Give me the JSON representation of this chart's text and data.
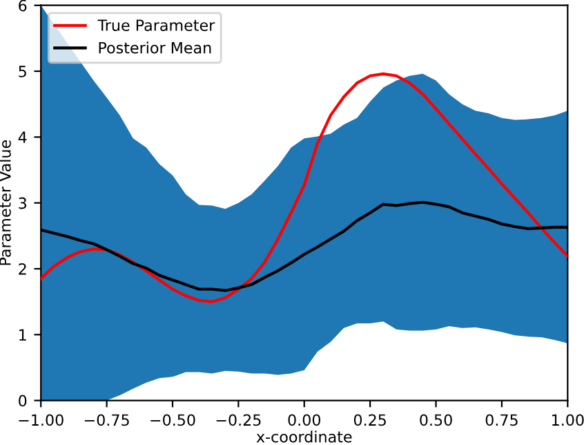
{
  "chart_data": {
    "type": "line",
    "xlabel": "x-coordinate",
    "ylabel": "Parameter Value",
    "x": [
      -1.0,
      -0.95,
      -0.9,
      -0.85,
      -0.8,
      -0.75,
      -0.7,
      -0.65,
      -0.6,
      -0.55,
      -0.5,
      -0.45,
      -0.4,
      -0.35,
      -0.3,
      -0.25,
      -0.2,
      -0.15,
      -0.1,
      -0.05,
      0.0,
      0.05,
      0.1,
      0.15,
      0.2,
      0.25,
      0.3,
      0.35,
      0.4,
      0.45,
      0.5,
      0.55,
      0.6,
      0.65,
      0.7,
      0.75,
      0.8,
      0.85,
      0.9,
      0.95,
      1.0
    ],
    "series": [
      {
        "name": "True Parameter",
        "color": "#ff0000",
        "values": [
          1.85,
          2.04,
          2.17,
          2.26,
          2.3,
          2.29,
          2.21,
          2.1,
          1.97,
          1.83,
          1.69,
          1.59,
          1.52,
          1.5,
          1.56,
          1.69,
          1.85,
          2.1,
          2.45,
          2.85,
          3.27,
          3.9,
          4.33,
          4.61,
          4.82,
          4.93,
          4.96,
          4.93,
          4.82,
          4.65,
          4.43,
          4.2,
          3.97,
          3.74,
          3.52,
          3.29,
          3.07,
          2.85,
          2.62,
          2.4,
          2.19
        ]
      },
      {
        "name": "Posterior Mean",
        "color": "#000000",
        "values": [
          2.59,
          2.54,
          2.49,
          2.43,
          2.38,
          2.29,
          2.19,
          2.08,
          2.01,
          1.9,
          1.83,
          1.76,
          1.69,
          1.69,
          1.67,
          1.71,
          1.76,
          1.87,
          1.97,
          2.09,
          2.22,
          2.33,
          2.45,
          2.57,
          2.73,
          2.85,
          2.98,
          2.96,
          2.99,
          3.01,
          2.98,
          2.94,
          2.85,
          2.8,
          2.75,
          2.68,
          2.64,
          2.61,
          2.62,
          2.63,
          2.63
        ],
        "lower": [
          0,
          null,
          null,
          null,
          0,
          0,
          0.08,
          0.18,
          0.27,
          0.34,
          0.36,
          0.43,
          0.43,
          0.41,
          0.45,
          0.44,
          0.41,
          0.41,
          0.39,
          0.41,
          0.46,
          0.74,
          0.89,
          1.1,
          1.17,
          1.17,
          1.2,
          1.08,
          1.06,
          1.06,
          1.08,
          1.13,
          1.1,
          1.11,
          1.08,
          1.04,
          0.99,
          0.97,
          0.96,
          0.92,
          0.87
        ],
        "upper": [
          6,
          null,
          null,
          null,
          4.86,
          4.6,
          4.33,
          3.98,
          3.84,
          3.59,
          3.42,
          3.13,
          2.97,
          2.96,
          2.91,
          3.0,
          3.13,
          3.34,
          3.56,
          3.84,
          3.98,
          4.01,
          4.05,
          4.19,
          4.29,
          4.54,
          4.75,
          4.86,
          4.93,
          4.96,
          4.86,
          4.65,
          4.5,
          4.4,
          4.36,
          4.29,
          4.26,
          4.27,
          4.29,
          4.33,
          4.4
        ]
      }
    ],
    "xlim": [
      -1.0,
      1.0
    ],
    "xticks": [
      {
        "value": -1.0,
        "label": "−1.00"
      },
      {
        "value": -0.75,
        "label": "−0.75"
      },
      {
        "value": -0.5,
        "label": "−0.50"
      },
      {
        "value": -0.25,
        "label": "−0.25"
      },
      {
        "value": 0.0,
        "label": "0.00"
      },
      {
        "value": 0.25,
        "label": "0.25"
      },
      {
        "value": 0.5,
        "label": "0.50"
      },
      {
        "value": 0.75,
        "label": "0.75"
      },
      {
        "value": 1.0,
        "label": "1.00"
      }
    ],
    "ylim": [
      0,
      6
    ],
    "yticks": [
      0,
      1,
      2,
      3,
      4,
      5,
      6
    ],
    "legend": "top left"
  }
}
